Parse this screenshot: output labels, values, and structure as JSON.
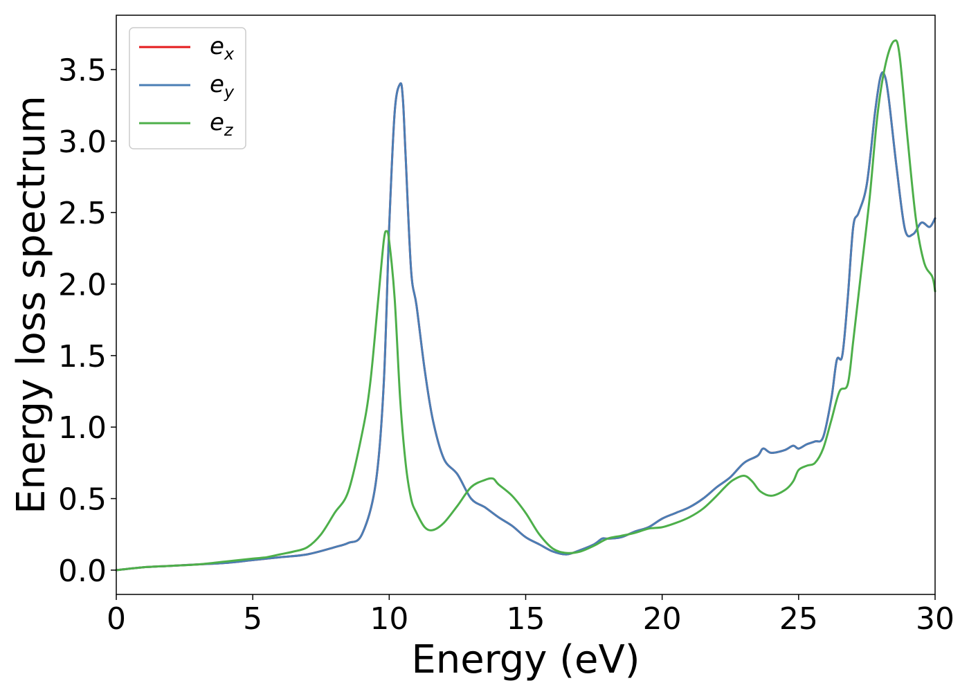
{
  "chart_data": {
    "type": "line",
    "title": "",
    "xlabel": "Energy (eV)",
    "ylabel": "Energy loss spectrum",
    "xlim": [
      0,
      30
    ],
    "ylim": [
      -0.17,
      3.88
    ],
    "xticks": [
      0,
      5,
      10,
      15,
      20,
      25,
      30
    ],
    "xtick_labels": [
      "0",
      "5",
      "10",
      "15",
      "20",
      "25",
      "30"
    ],
    "yticks": [
      0.0,
      0.5,
      1.0,
      1.5,
      2.0,
      2.5,
      3.0,
      3.5
    ],
    "ytick_labels": [
      "0.0",
      "0.5",
      "1.0",
      "1.5",
      "2.0",
      "2.5",
      "3.0",
      "3.5"
    ],
    "grid": false,
    "legend_position": "top-left",
    "series": [
      {
        "name": "e_x",
        "label_base": "e",
        "label_sub": "x",
        "color": "#e41a1c",
        "x": [
          0,
          1,
          2,
          3,
          4,
          5,
          6,
          7,
          8,
          8.5,
          9,
          9.5,
          9.8,
          10,
          10.2,
          10.4,
          10.5,
          10.6,
          10.8,
          11,
          11.3,
          11.6,
          12,
          12.5,
          13,
          13.5,
          14,
          14.5,
          15,
          15.5,
          16,
          16.5,
          17,
          17.5,
          17.8,
          18,
          18.5,
          19,
          19.5,
          20,
          20.5,
          21,
          21.5,
          22,
          22.5,
          23,
          23.5,
          23.7,
          24,
          24.5,
          24.8,
          25,
          25.3,
          25.6,
          25.9,
          26.2,
          26.4,
          26.6,
          26.8,
          27,
          27.2,
          27.5,
          27.8,
          28,
          28.15,
          28.3,
          28.6,
          28.9,
          29.2,
          29.5,
          29.8,
          30
        ],
        "y": [
          0.0,
          0.02,
          0.03,
          0.04,
          0.05,
          0.07,
          0.09,
          0.11,
          0.16,
          0.19,
          0.25,
          0.6,
          1.3,
          2.4,
          3.2,
          3.4,
          3.3,
          2.9,
          2.1,
          1.85,
          1.4,
          1.05,
          0.78,
          0.67,
          0.5,
          0.44,
          0.37,
          0.31,
          0.23,
          0.18,
          0.13,
          0.11,
          0.14,
          0.18,
          0.22,
          0.22,
          0.23,
          0.27,
          0.3,
          0.36,
          0.4,
          0.44,
          0.5,
          0.58,
          0.65,
          0.75,
          0.8,
          0.85,
          0.82,
          0.84,
          0.87,
          0.85,
          0.88,
          0.9,
          0.93,
          1.2,
          1.47,
          1.5,
          1.9,
          2.4,
          2.5,
          2.7,
          3.2,
          3.45,
          3.46,
          3.3,
          2.8,
          2.38,
          2.35,
          2.43,
          2.4,
          2.46
        ]
      },
      {
        "name": "e_y",
        "label_base": "e",
        "label_sub": "y",
        "color": "#4a7eb5",
        "x": [
          0,
          1,
          2,
          3,
          4,
          5,
          6,
          7,
          8,
          8.5,
          9,
          9.5,
          9.8,
          10,
          10.2,
          10.4,
          10.5,
          10.6,
          10.8,
          11,
          11.3,
          11.6,
          12,
          12.5,
          13,
          13.5,
          14,
          14.5,
          15,
          15.5,
          16,
          16.5,
          17,
          17.5,
          17.8,
          18,
          18.5,
          19,
          19.5,
          20,
          20.5,
          21,
          21.5,
          22,
          22.5,
          23,
          23.5,
          23.7,
          24,
          24.5,
          24.8,
          25,
          25.3,
          25.6,
          25.9,
          26.2,
          26.4,
          26.6,
          26.8,
          27,
          27.2,
          27.5,
          27.8,
          28,
          28.15,
          28.3,
          28.6,
          28.9,
          29.2,
          29.5,
          29.8,
          30
        ],
        "y": [
          0.0,
          0.02,
          0.03,
          0.04,
          0.05,
          0.07,
          0.09,
          0.11,
          0.16,
          0.19,
          0.25,
          0.6,
          1.3,
          2.4,
          3.2,
          3.4,
          3.3,
          2.9,
          2.1,
          1.85,
          1.4,
          1.05,
          0.78,
          0.67,
          0.5,
          0.44,
          0.37,
          0.31,
          0.23,
          0.18,
          0.13,
          0.11,
          0.14,
          0.18,
          0.22,
          0.22,
          0.23,
          0.27,
          0.3,
          0.36,
          0.4,
          0.44,
          0.5,
          0.58,
          0.65,
          0.75,
          0.8,
          0.85,
          0.82,
          0.84,
          0.87,
          0.85,
          0.88,
          0.9,
          0.93,
          1.2,
          1.47,
          1.5,
          1.9,
          2.4,
          2.5,
          2.7,
          3.2,
          3.45,
          3.46,
          3.3,
          2.8,
          2.38,
          2.35,
          2.43,
          2.4,
          2.46
        ]
      },
      {
        "name": "e_z",
        "label_base": "e",
        "label_sub": "z",
        "color": "#4daf4a",
        "x": [
          0,
          1,
          2,
          3,
          4,
          5,
          5.5,
          6,
          6.5,
          7,
          7.5,
          8,
          8.5,
          9,
          9.3,
          9.6,
          9.8,
          9.9,
          10,
          10.2,
          10.4,
          10.6,
          10.8,
          11,
          11.3,
          11.6,
          12,
          12.5,
          13,
          13.5,
          13.8,
          14,
          14.5,
          15,
          15.5,
          16,
          16.5,
          17,
          17.5,
          18,
          18.5,
          19,
          19.5,
          20,
          20.5,
          21,
          21.5,
          22,
          22.3,
          22.6,
          23,
          23.3,
          23.6,
          24,
          24.5,
          24.8,
          25,
          25.3,
          25.6,
          25.9,
          26.2,
          26.5,
          26.8,
          27,
          27.3,
          27.6,
          27.9,
          28.2,
          28.5,
          28.7,
          29,
          29.3,
          29.6,
          29.9,
          30
        ],
        "y": [
          0.0,
          0.02,
          0.03,
          0.04,
          0.06,
          0.08,
          0.09,
          0.11,
          0.13,
          0.16,
          0.25,
          0.4,
          0.55,
          0.95,
          1.3,
          1.9,
          2.3,
          2.37,
          2.3,
          1.9,
          1.2,
          0.75,
          0.5,
          0.4,
          0.3,
          0.28,
          0.33,
          0.45,
          0.58,
          0.63,
          0.64,
          0.6,
          0.52,
          0.4,
          0.25,
          0.15,
          0.12,
          0.13,
          0.17,
          0.22,
          0.24,
          0.26,
          0.29,
          0.3,
          0.33,
          0.37,
          0.43,
          0.52,
          0.58,
          0.63,
          0.66,
          0.62,
          0.55,
          0.52,
          0.56,
          0.62,
          0.7,
          0.73,
          0.75,
          0.85,
          1.05,
          1.25,
          1.3,
          1.6,
          2.1,
          2.6,
          3.2,
          3.55,
          3.7,
          3.6,
          3.0,
          2.45,
          2.15,
          2.05,
          1.95
        ]
      }
    ]
  }
}
